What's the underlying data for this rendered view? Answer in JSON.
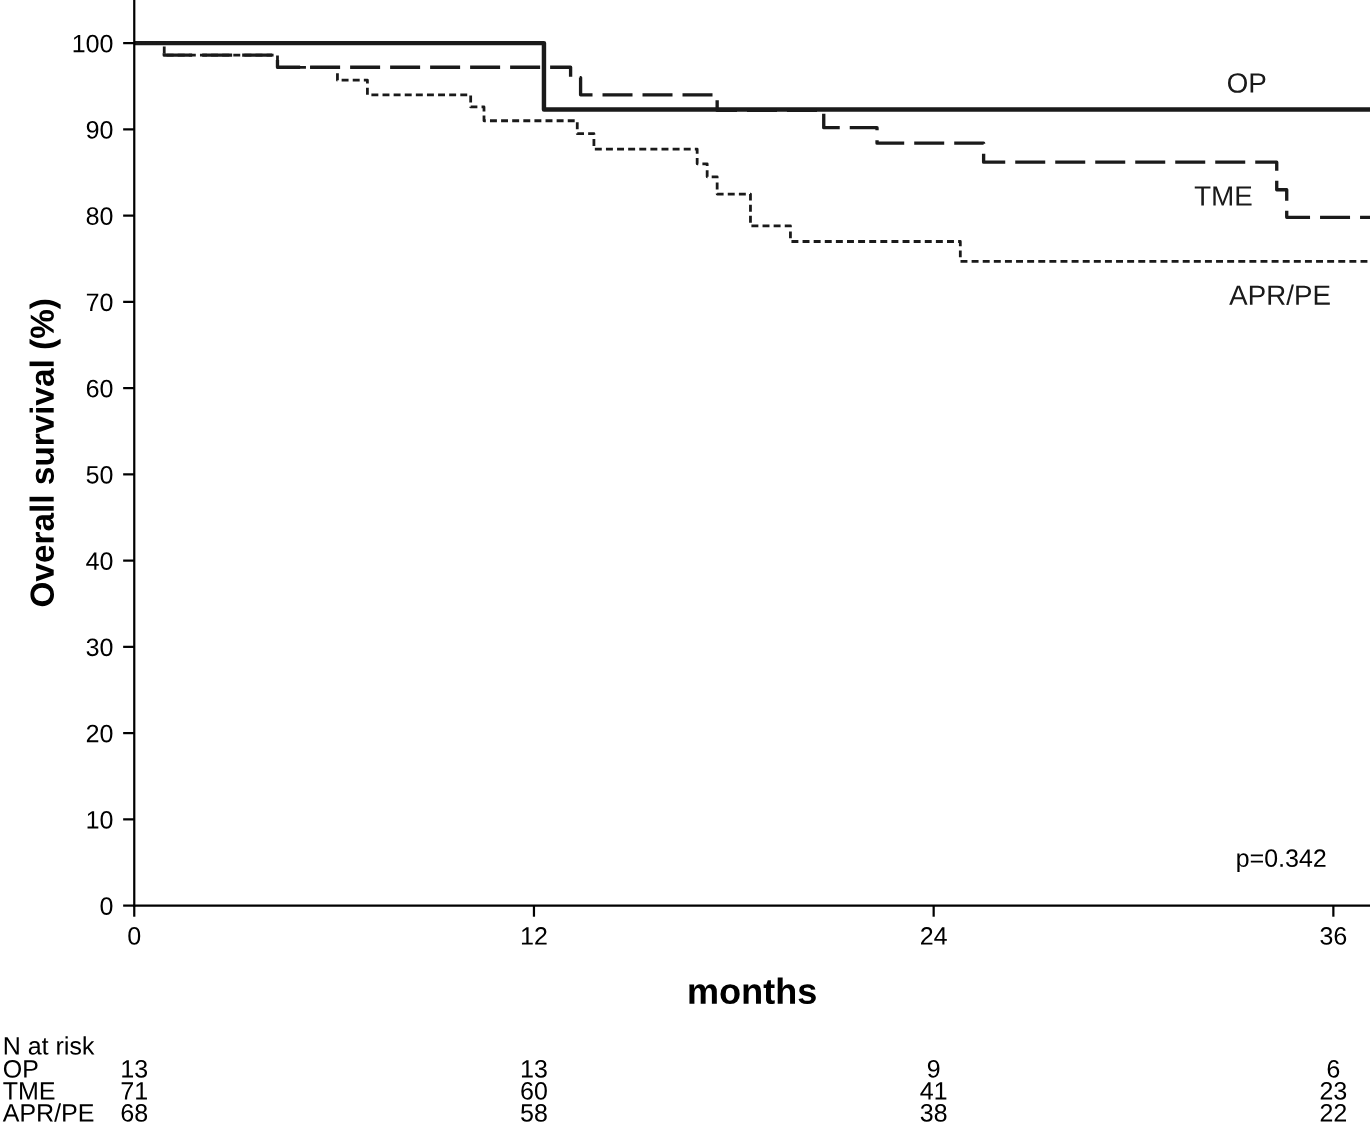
{
  "chart_data": {
    "type": "step",
    "xlabel": "months",
    "ylabel": "Overall survival (%)",
    "xlim": [
      0,
      37.1
    ],
    "xticks": [
      0,
      12,
      24,
      36
    ],
    "ylim": [
      0,
      105
    ],
    "yticks": [
      0,
      10,
      20,
      30,
      40,
      50,
      60,
      70,
      80,
      90,
      100
    ],
    "grid": false,
    "legend": false,
    "series": [
      {
        "name": "OP",
        "color": "#1a1a1a",
        "line_style": "solid",
        "x": [
          0,
          12.3,
          37.1
        ],
        "values": [
          100,
          92.3,
          92.3
        ]
      },
      {
        "name": "TME",
        "color": "#1a1a1a",
        "line_style": "dashed",
        "x": [
          0,
          0.9,
          4.3,
          13.1,
          13.4,
          17.5,
          20.7,
          22.3,
          25.5,
          34.3,
          34.6,
          37.1
        ],
        "values": [
          100,
          98.6,
          97.2,
          96.0,
          94.0,
          92.2,
          90.2,
          88.4,
          86.2,
          83.0,
          79.8,
          79.8
        ]
      },
      {
        "name": "APR/PE",
        "color": "#1a1a1a",
        "line_style": "dotted",
        "x": [
          0,
          0.9,
          4.3,
          6.1,
          7.0,
          10.1,
          10.5,
          13.3,
          13.8,
          16.9,
          17.2,
          17.5,
          18.5,
          19.7,
          24.8,
          37.1
        ],
        "values": [
          100,
          98.6,
          97.2,
          95.7,
          94.0,
          92.6,
          91.0,
          89.5,
          87.7,
          86.0,
          84.5,
          82.5,
          78.8,
          77.0,
          74.7,
          74.7
        ]
      }
    ],
    "annotations": [
      "p=0.342",
      "N at risk",
      "OP",
      "13",
      "13",
      "9",
      "6",
      "TME",
      "71",
      "60",
      "41",
      "23",
      "APR/PE",
      "68",
      "58",
      "38",
      "22"
    ]
  }
}
